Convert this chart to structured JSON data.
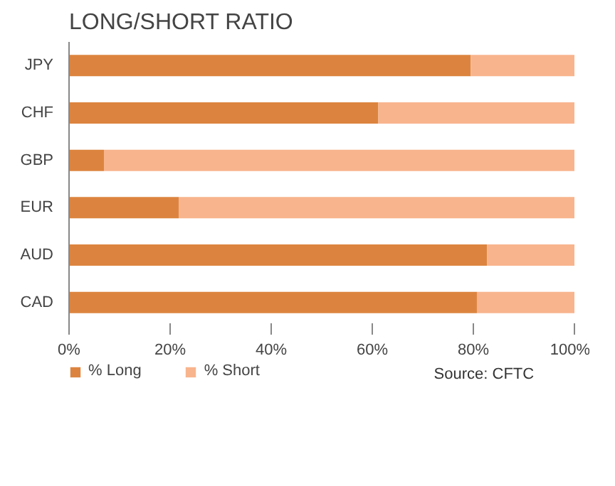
{
  "chart_data": {
    "type": "bar",
    "title": "LONG/SHORT RATIO",
    "orientation": "horizontal",
    "stacked": true,
    "categories": [
      "JPY",
      "CHF",
      "GBP",
      "EUR",
      "AUD",
      "CAD"
    ],
    "series": [
      {
        "name": "% Long",
        "color": "#dc843f",
        "values": [
          79.5,
          61.2,
          6.9,
          21.7,
          82.7,
          80.7
        ]
      },
      {
        "name": "% Short",
        "color": "#f8b48d",
        "values": [
          20.5,
          38.8,
          93.1,
          78.3,
          17.3,
          19.3
        ]
      }
    ],
    "xlim": [
      0,
      100
    ],
    "xticks": [
      {
        "value": 0,
        "label": "0%"
      },
      {
        "value": 20,
        "label": "20%"
      },
      {
        "value": 40,
        "label": "40%"
      },
      {
        "value": 60,
        "label": "60%"
      },
      {
        "value": 80,
        "label": "80%"
      },
      {
        "value": 100,
        "label": "100%"
      }
    ],
    "grid": false,
    "legend": "bottom",
    "annotations": [
      "Source: CFTC"
    ]
  }
}
